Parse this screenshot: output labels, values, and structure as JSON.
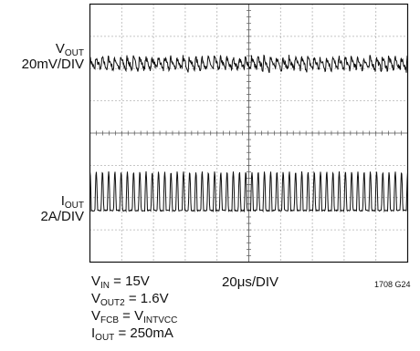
{
  "chart_data": {
    "type": "line",
    "title": "",
    "grid": true,
    "divisions": {
      "x": 10,
      "y": 8
    },
    "timebase": {
      "value": "20",
      "unit": "μs/DIV"
    },
    "figure_id": "1708 G24",
    "traces": [
      {
        "name": "V_OUT",
        "label_main": "V",
        "label_sub": "OUT",
        "scale": "20mV/DIV",
        "kind": "ripple",
        "baseline_div": 1.85,
        "peak_to_peak_mV": 8,
        "pulse_count": 51,
        "color": "#111111"
      },
      {
        "name": "I_OUT",
        "label_main": "I",
        "label_sub": "OUT",
        "scale": "2A/DIV",
        "kind": "pulse",
        "baseline_div": 6.4,
        "peak_A": 2.4,
        "pulse_count": 51,
        "color": "#111111"
      }
    ],
    "conditions": [
      {
        "main": "V",
        "sub": "IN",
        "rest": " = 15V"
      },
      {
        "main": "V",
        "sub": "OUT2",
        "rest": " = 1.6V"
      },
      {
        "main": "V",
        "sub": "FCB",
        "rest": " = V",
        "sub2": "INTVCC"
      },
      {
        "main": "I",
        "sub": "OUT",
        "rest": " = 250mA"
      }
    ]
  }
}
